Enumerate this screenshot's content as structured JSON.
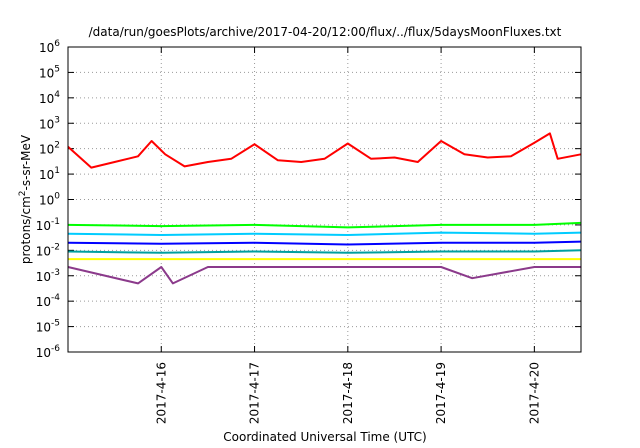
{
  "chart_data": {
    "type": "line",
    "title": "/data/run/goesPlots/archive/2017-04-20/12:00/flux/../flux/5daysMoonFluxes.txt",
    "xlabel": "Coordinated Universal Time (UTC)",
    "ylabel": "protons/cm2-s-sr-MeV",
    "ylabel_parts": {
      "pre": "protons/cm",
      "sup": "2",
      "post": "-s-sr-MeV"
    },
    "x_scale": "time",
    "x_range": [
      "2017-04-15T00:00",
      "2017-04-20T12:00"
    ],
    "x_ticks": [
      "2017-4-16",
      "2017-4-17",
      "2017-4-18",
      "2017-4-19",
      "2017-4-20"
    ],
    "y_scale": "log",
    "ylim": [
      1e-06,
      1000000.0
    ],
    "y_tick_exponents": [
      -6,
      -5,
      -4,
      -3,
      -2,
      -1,
      0,
      1,
      2,
      3,
      4,
      5,
      6
    ],
    "y_tick_base": "10",
    "grid": true,
    "series": [
      {
        "color": "#ff0000",
        "x": [
          "2017-04-15T00:00",
          "2017-04-15T06:00",
          "2017-04-15T12:00",
          "2017-04-15T18:00",
          "2017-04-15T21:30",
          "2017-04-16T01:00",
          "2017-04-16T06:00",
          "2017-04-16T12:00",
          "2017-04-16T18:00",
          "2017-04-17T00:00",
          "2017-04-17T06:00",
          "2017-04-17T12:00",
          "2017-04-17T18:00",
          "2017-04-18T00:00",
          "2017-04-18T06:00",
          "2017-04-18T12:00",
          "2017-04-18T18:00",
          "2017-04-19T00:00",
          "2017-04-19T06:00",
          "2017-04-19T12:00",
          "2017-04-19T18:00",
          "2017-04-20T00:00",
          "2017-04-20T04:00",
          "2017-04-20T06:00",
          "2017-04-20T12:00"
        ],
        "values": [
          120,
          18,
          30,
          50,
          200,
          60,
          20,
          30,
          40,
          150,
          35,
          30,
          40,
          160,
          40,
          45,
          30,
          200,
          60,
          45,
          50,
          170,
          400,
          40,
          60
        ]
      },
      {
        "color": "#00ff00",
        "x": [
          "2017-04-15T00:00",
          "2017-04-16T00:00",
          "2017-04-17T00:00",
          "2017-04-18T00:00",
          "2017-04-19T00:00",
          "2017-04-20T00:00",
          "2017-04-20T12:00"
        ],
        "values": [
          0.1,
          0.09,
          0.1,
          0.08,
          0.1,
          0.1,
          0.12
        ]
      },
      {
        "color": "#00ccff",
        "x": [
          "2017-04-15T00:00",
          "2017-04-16T00:00",
          "2017-04-17T00:00",
          "2017-04-18T00:00",
          "2017-04-19T00:00",
          "2017-04-20T00:00",
          "2017-04-20T12:00"
        ],
        "values": [
          0.045,
          0.04,
          0.045,
          0.04,
          0.05,
          0.045,
          0.05
        ]
      },
      {
        "color": "#0000ff",
        "x": [
          "2017-04-15T00:00",
          "2017-04-16T00:00",
          "2017-04-17T00:00",
          "2017-04-18T00:00",
          "2017-04-19T00:00",
          "2017-04-20T00:00",
          "2017-04-20T12:00"
        ],
        "values": [
          0.02,
          0.018,
          0.02,
          0.017,
          0.02,
          0.02,
          0.022
        ]
      },
      {
        "color": "#00a0a0",
        "x": [
          "2017-04-15T00:00",
          "2017-04-16T00:00",
          "2017-04-17T00:00",
          "2017-04-18T00:00",
          "2017-04-19T00:00",
          "2017-04-20T00:00",
          "2017-04-20T12:00"
        ],
        "values": [
          0.009,
          0.008,
          0.009,
          0.008,
          0.009,
          0.009,
          0.01
        ]
      },
      {
        "color": "#ffff00",
        "x": [
          "2017-04-15T00:00",
          "2017-04-20T12:00"
        ],
        "values": [
          0.0045,
          0.0045
        ]
      },
      {
        "color": "#8b3a8b",
        "x": [
          "2017-04-15T00:00",
          "2017-04-15T18:00",
          "2017-04-16T00:00",
          "2017-04-16T03:00",
          "2017-04-16T12:00",
          "2017-04-17T00:00",
          "2017-04-18T00:00",
          "2017-04-19T00:00",
          "2017-04-19T08:00",
          "2017-04-20T00:00",
          "2017-04-20T12:00"
        ],
        "values": [
          0.0022,
          0.0005,
          0.0022,
          0.0005,
          0.0022,
          0.0022,
          0.0022,
          0.0022,
          0.0008,
          0.0022,
          0.0022
        ]
      }
    ]
  }
}
